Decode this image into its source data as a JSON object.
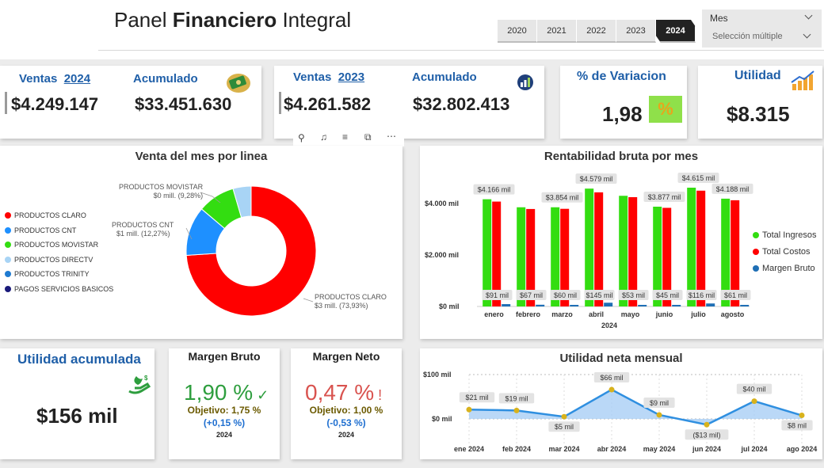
{
  "header": {
    "title_prefix": "Panel ",
    "title_bold": "Financiero",
    "title_suffix": " Integral",
    "years": [
      "2020",
      "2021",
      "2022",
      "2023",
      "2024"
    ],
    "active_year": "2024",
    "slicer_label": "Mes",
    "slicer_value": "Selección múltiple"
  },
  "kpi1": {
    "ventas_label": "Ventas",
    "ventas_year": "2024",
    "ventas_value": "$4.249.147",
    "acum_label": "Acumulado",
    "acum_value": "$33.451.630"
  },
  "kpi2": {
    "ventas_label": "Ventas",
    "ventas_year": "2023",
    "ventas_value": "$4.261.582",
    "acum_label": "Acumulado",
    "acum_value": "$32.802.413"
  },
  "kpi3": {
    "label": "% de Variacion",
    "value": "1,98",
    "badge": "%"
  },
  "kpi4": {
    "label": "Utilidad",
    "value": "$8.315"
  },
  "donut": {
    "title": "Venta del mes por linea",
    "legend": [
      {
        "name": "PRODUCTOS CLARO",
        "color": "#ff0000"
      },
      {
        "name": "PRODUCTOS CNT",
        "color": "#1e90ff"
      },
      {
        "name": "PRODUCTOS MOVISTAR",
        "color": "#33dd11"
      },
      {
        "name": "PRODUCTOS DIRECTV",
        "color": "#a8d4f5"
      },
      {
        "name": "PRODUCTOS TRINITY",
        "color": "#1f7bd1"
      },
      {
        "name": "PAGOS SERVICIOS BASICOS",
        "color": "#1a1a7a"
      }
    ],
    "labels": {
      "movistar_name": "PRODUCTOS MOVISTAR",
      "movistar_val": "$0 mill. (9,28%)",
      "cnt_name": "PRODUCTOS CNT",
      "cnt_val": "$1 mill. (12,27%)",
      "claro_name": "PRODUCTOS CLARO",
      "claro_val": "$3 mill. (73,93%)"
    }
  },
  "bar_chart": {
    "title": "Rentabilidad bruta por mes",
    "xaxis_title": "2024",
    "yticks": [
      "$4.000 mil",
      "$2.000 mil",
      "$0 mil"
    ],
    "legend": [
      {
        "name": "Total Ingresos",
        "color": "#33dd11"
      },
      {
        "name": "Total Costos",
        "color": "#ff0000"
      },
      {
        "name": "Margen Bruto",
        "color": "#1f6fb5"
      }
    ],
    "labels_top": [
      "$4.166 mil",
      "$3.854 mil",
      "$4.579 mil",
      "$3.877 mil",
      "$4.615 mil",
      "$4.188 mil"
    ],
    "labels_bottom": [
      "$91 mil",
      "$67 mil",
      "$60 mil",
      "$145 mil",
      "$53 mil",
      "$45 mil",
      "$116 mil",
      "$61 mil"
    ]
  },
  "utilidad_acumulada": {
    "label": "Utilidad acumulada",
    "value": "$156 mil"
  },
  "margen_bruto": {
    "title": "Margen Bruto",
    "value": "1,90 %",
    "objetivo": "Objetivo: 1,75 %",
    "delta": "(+0,15 %)",
    "year": "2024"
  },
  "margen_neto": {
    "title": "Margen Neto",
    "value": "0,47 %",
    "objetivo": "Objetivo: 1,00 %",
    "delta": "(-0,53 %)",
    "year": "2024"
  },
  "line_chart": {
    "title": "Utilidad neta mensual",
    "yticks": [
      "$100 mil",
      "$0 mil"
    ],
    "point_labels": [
      "$21 mil",
      "$19 mil",
      "$5 mil",
      "$66 mil",
      "$9 mil",
      "($13 mil)",
      "$40 mil",
      "$8 mil"
    ]
  },
  "chart_data": [
    {
      "type": "pie",
      "title": "Venta del mes por linea",
      "categories": [
        "PRODUCTOS CLARO",
        "PRODUCTOS CNT",
        "PRODUCTOS MOVISTAR",
        "PRODUCTOS DIRECTV"
      ],
      "values": [
        73.93,
        12.27,
        9.28,
        4.52
      ]
    },
    {
      "type": "bar",
      "title": "Rentabilidad bruta por mes",
      "categories": [
        "enero",
        "febrero",
        "marzo",
        "abril",
        "mayo",
        "junio",
        "julio",
        "agosto"
      ],
      "series": [
        {
          "name": "Total Ingresos",
          "values": [
            4166,
            3854,
            3854,
            4579,
            4300,
            3877,
            4615,
            4188
          ]
        },
        {
          "name": "Total Costos",
          "values": [
            4075,
            3787,
            3794,
            4434,
            4247,
            3832,
            4499,
            4127
          ]
        },
        {
          "name": "Margen Bruto",
          "values": [
            91,
            67,
            60,
            145,
            53,
            45,
            116,
            61
          ]
        }
      ],
      "xlabel": "2024",
      "ylim": [
        0,
        5000
      ]
    },
    {
      "type": "area",
      "title": "Utilidad neta mensual",
      "categories": [
        "ene 2024",
        "feb 2024",
        "mar 2024",
        "abr 2024",
        "may 2024",
        "jun 2024",
        "jul 2024",
        "ago 2024"
      ],
      "values": [
        21,
        19,
        5,
        66,
        9,
        -13,
        40,
        8
      ],
      "ylim": [
        -20,
        100
      ]
    }
  ]
}
